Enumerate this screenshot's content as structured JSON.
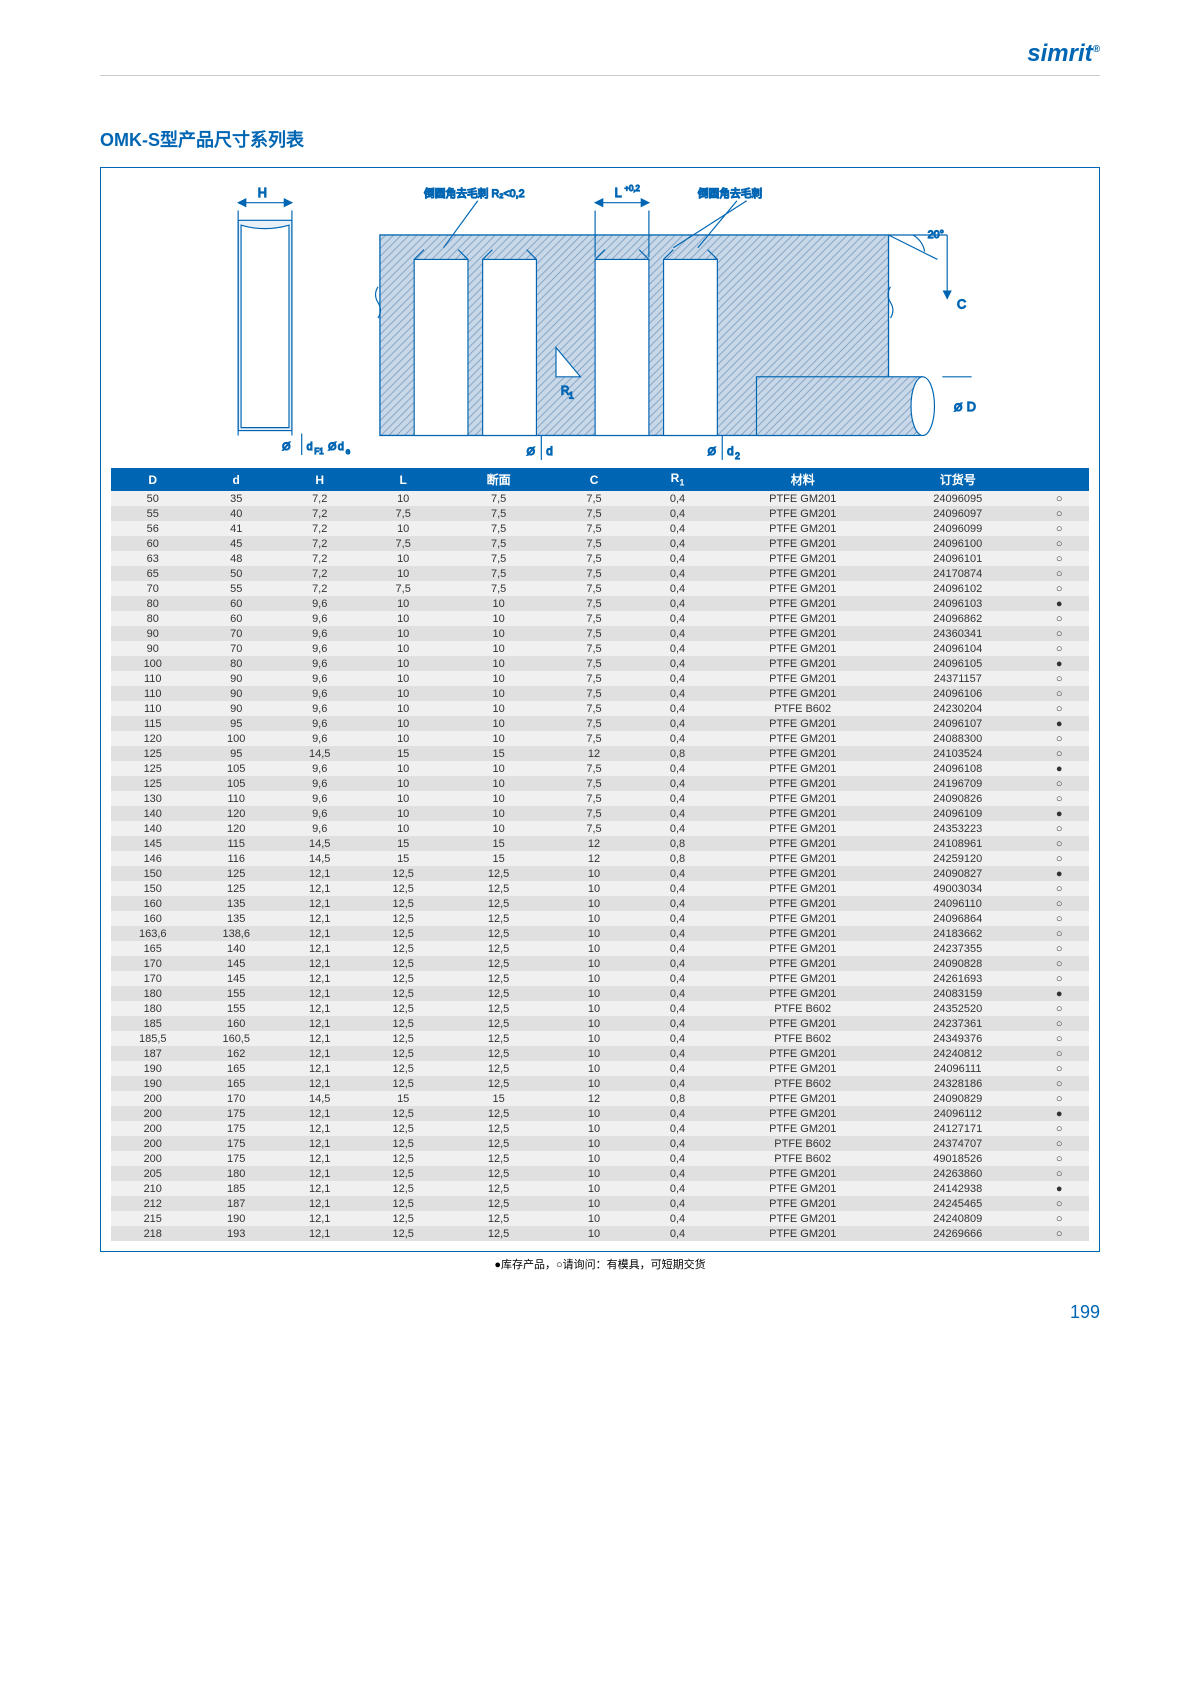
{
  "brand": "simrit",
  "title": "OMK-S型产品尺寸系列表",
  "page_number": "199",
  "footnote": "●库存产品，○请询问：有模具，可短期交货",
  "diagram": {
    "labels": {
      "H": "H",
      "chamfer_note": "倒圆角去毛刺 R₂<0,2",
      "L": "L",
      "L_tol": "+0,2",
      "chamfer_note2": "倒圆角去毛刺",
      "angle": "20°",
      "C": "C",
      "D": "D",
      "d": "d",
      "dF1": "dF1",
      "de": "de",
      "d2": "d₂",
      "R1": "R₁"
    },
    "colors": {
      "stroke": "#0066b3",
      "fill_hatch": "#b8cce0",
      "fill_light": "#d9e5f0"
    }
  },
  "table": {
    "headers": [
      "D",
      "d",
      "H",
      "L",
      "断面",
      "C",
      "R₁",
      "材料",
      "订货号",
      ""
    ],
    "rows": [
      [
        "50",
        "35",
        "7,2",
        "10",
        "7,5",
        "7,5",
        "0,4",
        "PTFE GM201",
        "24096095",
        "○"
      ],
      [
        "55",
        "40",
        "7,2",
        "7,5",
        "7,5",
        "7,5",
        "0,4",
        "PTFE GM201",
        "24096097",
        "○"
      ],
      [
        "56",
        "41",
        "7,2",
        "10",
        "7,5",
        "7,5",
        "0,4",
        "PTFE GM201",
        "24096099",
        "○"
      ],
      [
        "60",
        "45",
        "7,2",
        "7,5",
        "7,5",
        "7,5",
        "0,4",
        "PTFE GM201",
        "24096100",
        "○"
      ],
      [
        "63",
        "48",
        "7,2",
        "10",
        "7,5",
        "7,5",
        "0,4",
        "PTFE GM201",
        "24096101",
        "○"
      ],
      [
        "65",
        "50",
        "7,2",
        "10",
        "7,5",
        "7,5",
        "0,4",
        "PTFE GM201",
        "24170874",
        "○"
      ],
      [
        "70",
        "55",
        "7,2",
        "7,5",
        "7,5",
        "7,5",
        "0,4",
        "PTFE GM201",
        "24096102",
        "○"
      ],
      [
        "80",
        "60",
        "9,6",
        "10",
        "10",
        "7,5",
        "0,4",
        "PTFE GM201",
        "24096103",
        "●"
      ],
      [
        "80",
        "60",
        "9,6",
        "10",
        "10",
        "7,5",
        "0,4",
        "PTFE GM201",
        "24096862",
        "○"
      ],
      [
        "90",
        "70",
        "9,6",
        "10",
        "10",
        "7,5",
        "0,4",
        "PTFE GM201",
        "24360341",
        "○"
      ],
      [
        "90",
        "70",
        "9,6",
        "10",
        "10",
        "7,5",
        "0,4",
        "PTFE GM201",
        "24096104",
        "○"
      ],
      [
        "100",
        "80",
        "9,6",
        "10",
        "10",
        "7,5",
        "0,4",
        "PTFE GM201",
        "24096105",
        "●"
      ],
      [
        "110",
        "90",
        "9,6",
        "10",
        "10",
        "7,5",
        "0,4",
        "PTFE GM201",
        "24371157",
        "○"
      ],
      [
        "110",
        "90",
        "9,6",
        "10",
        "10",
        "7,5",
        "0,4",
        "PTFE GM201",
        "24096106",
        "○"
      ],
      [
        "110",
        "90",
        "9,6",
        "10",
        "10",
        "7,5",
        "0,4",
        "PTFE B602",
        "24230204",
        "○"
      ],
      [
        "115",
        "95",
        "9,6",
        "10",
        "10",
        "7,5",
        "0,4",
        "PTFE GM201",
        "24096107",
        "●"
      ],
      [
        "120",
        "100",
        "9,6",
        "10",
        "10",
        "7,5",
        "0,4",
        "PTFE GM201",
        "24088300",
        "○"
      ],
      [
        "125",
        "95",
        "14,5",
        "15",
        "15",
        "12",
        "0,8",
        "PTFE GM201",
        "24103524",
        "○"
      ],
      [
        "125",
        "105",
        "9,6",
        "10",
        "10",
        "7,5",
        "0,4",
        "PTFE GM201",
        "24096108",
        "●"
      ],
      [
        "125",
        "105",
        "9,6",
        "10",
        "10",
        "7,5",
        "0,4",
        "PTFE GM201",
        "24196709",
        "○"
      ],
      [
        "130",
        "110",
        "9,6",
        "10",
        "10",
        "7,5",
        "0,4",
        "PTFE GM201",
        "24090826",
        "○"
      ],
      [
        "140",
        "120",
        "9,6",
        "10",
        "10",
        "7,5",
        "0,4",
        "PTFE GM201",
        "24096109",
        "●"
      ],
      [
        "140",
        "120",
        "9,6",
        "10",
        "10",
        "7,5",
        "0,4",
        "PTFE GM201",
        "24353223",
        "○"
      ],
      [
        "145",
        "115",
        "14,5",
        "15",
        "15",
        "12",
        "0,8",
        "PTFE GM201",
        "24108961",
        "○"
      ],
      [
        "146",
        "116",
        "14,5",
        "15",
        "15",
        "12",
        "0,8",
        "PTFE GM201",
        "24259120",
        "○"
      ],
      [
        "150",
        "125",
        "12,1",
        "12,5",
        "12,5",
        "10",
        "0,4",
        "PTFE GM201",
        "24090827",
        "●"
      ],
      [
        "150",
        "125",
        "12,1",
        "12,5",
        "12,5",
        "10",
        "0,4",
        "PTFE GM201",
        "49003034",
        "○"
      ],
      [
        "160",
        "135",
        "12,1",
        "12,5",
        "12,5",
        "10",
        "0,4",
        "PTFE GM201",
        "24096110",
        "○"
      ],
      [
        "160",
        "135",
        "12,1",
        "12,5",
        "12,5",
        "10",
        "0,4",
        "PTFE GM201",
        "24096864",
        "○"
      ],
      [
        "163,6",
        "138,6",
        "12,1",
        "12,5",
        "12,5",
        "10",
        "0,4",
        "PTFE GM201",
        "24183662",
        "○"
      ],
      [
        "165",
        "140",
        "12,1",
        "12,5",
        "12,5",
        "10",
        "0,4",
        "PTFE GM201",
        "24237355",
        "○"
      ],
      [
        "170",
        "145",
        "12,1",
        "12,5",
        "12,5",
        "10",
        "0,4",
        "PTFE GM201",
        "24090828",
        "○"
      ],
      [
        "170",
        "145",
        "12,1",
        "12,5",
        "12,5",
        "10",
        "0,4",
        "PTFE GM201",
        "24261693",
        "○"
      ],
      [
        "180",
        "155",
        "12,1",
        "12,5",
        "12,5",
        "10",
        "0,4",
        "PTFE GM201",
        "24083159",
        "●"
      ],
      [
        "180",
        "155",
        "12,1",
        "12,5",
        "12,5",
        "10",
        "0,4",
        "PTFE B602",
        "24352520",
        "○"
      ],
      [
        "185",
        "160",
        "12,1",
        "12,5",
        "12,5",
        "10",
        "0,4",
        "PTFE GM201",
        "24237361",
        "○"
      ],
      [
        "185,5",
        "160,5",
        "12,1",
        "12,5",
        "12,5",
        "10",
        "0,4",
        "PTFE B602",
        "24349376",
        "○"
      ],
      [
        "187",
        "162",
        "12,1",
        "12,5",
        "12,5",
        "10",
        "0,4",
        "PTFE GM201",
        "24240812",
        "○"
      ],
      [
        "190",
        "165",
        "12,1",
        "12,5",
        "12,5",
        "10",
        "0,4",
        "PTFE GM201",
        "24096111",
        "○"
      ],
      [
        "190",
        "165",
        "12,1",
        "12,5",
        "12,5",
        "10",
        "0,4",
        "PTFE B602",
        "24328186",
        "○"
      ],
      [
        "200",
        "170",
        "14,5",
        "15",
        "15",
        "12",
        "0,8",
        "PTFE GM201",
        "24090829",
        "○"
      ],
      [
        "200",
        "175",
        "12,1",
        "12,5",
        "12,5",
        "10",
        "0,4",
        "PTFE GM201",
        "24096112",
        "●"
      ],
      [
        "200",
        "175",
        "12,1",
        "12,5",
        "12,5",
        "10",
        "0,4",
        "PTFE GM201",
        "24127171",
        "○"
      ],
      [
        "200",
        "175",
        "12,1",
        "12,5",
        "12,5",
        "10",
        "0,4",
        "PTFE B602",
        "24374707",
        "○"
      ],
      [
        "200",
        "175",
        "12,1",
        "12,5",
        "12,5",
        "10",
        "0,4",
        "PTFE B602",
        "49018526",
        "○"
      ],
      [
        "205",
        "180",
        "12,1",
        "12,5",
        "12,5",
        "10",
        "0,4",
        "PTFE GM201",
        "24263860",
        "○"
      ],
      [
        "210",
        "185",
        "12,1",
        "12,5",
        "12,5",
        "10",
        "0,4",
        "PTFE GM201",
        "24142938",
        "●"
      ],
      [
        "212",
        "187",
        "12,1",
        "12,5",
        "12,5",
        "10",
        "0,4",
        "PTFE GM201",
        "24245465",
        "○"
      ],
      [
        "215",
        "190",
        "12,1",
        "12,5",
        "12,5",
        "10",
        "0,4",
        "PTFE GM201",
        "24240809",
        "○"
      ],
      [
        "218",
        "193",
        "12,1",
        "12,5",
        "12,5",
        "10",
        "0,4",
        "PTFE GM201",
        "24269666",
        "○"
      ]
    ]
  }
}
